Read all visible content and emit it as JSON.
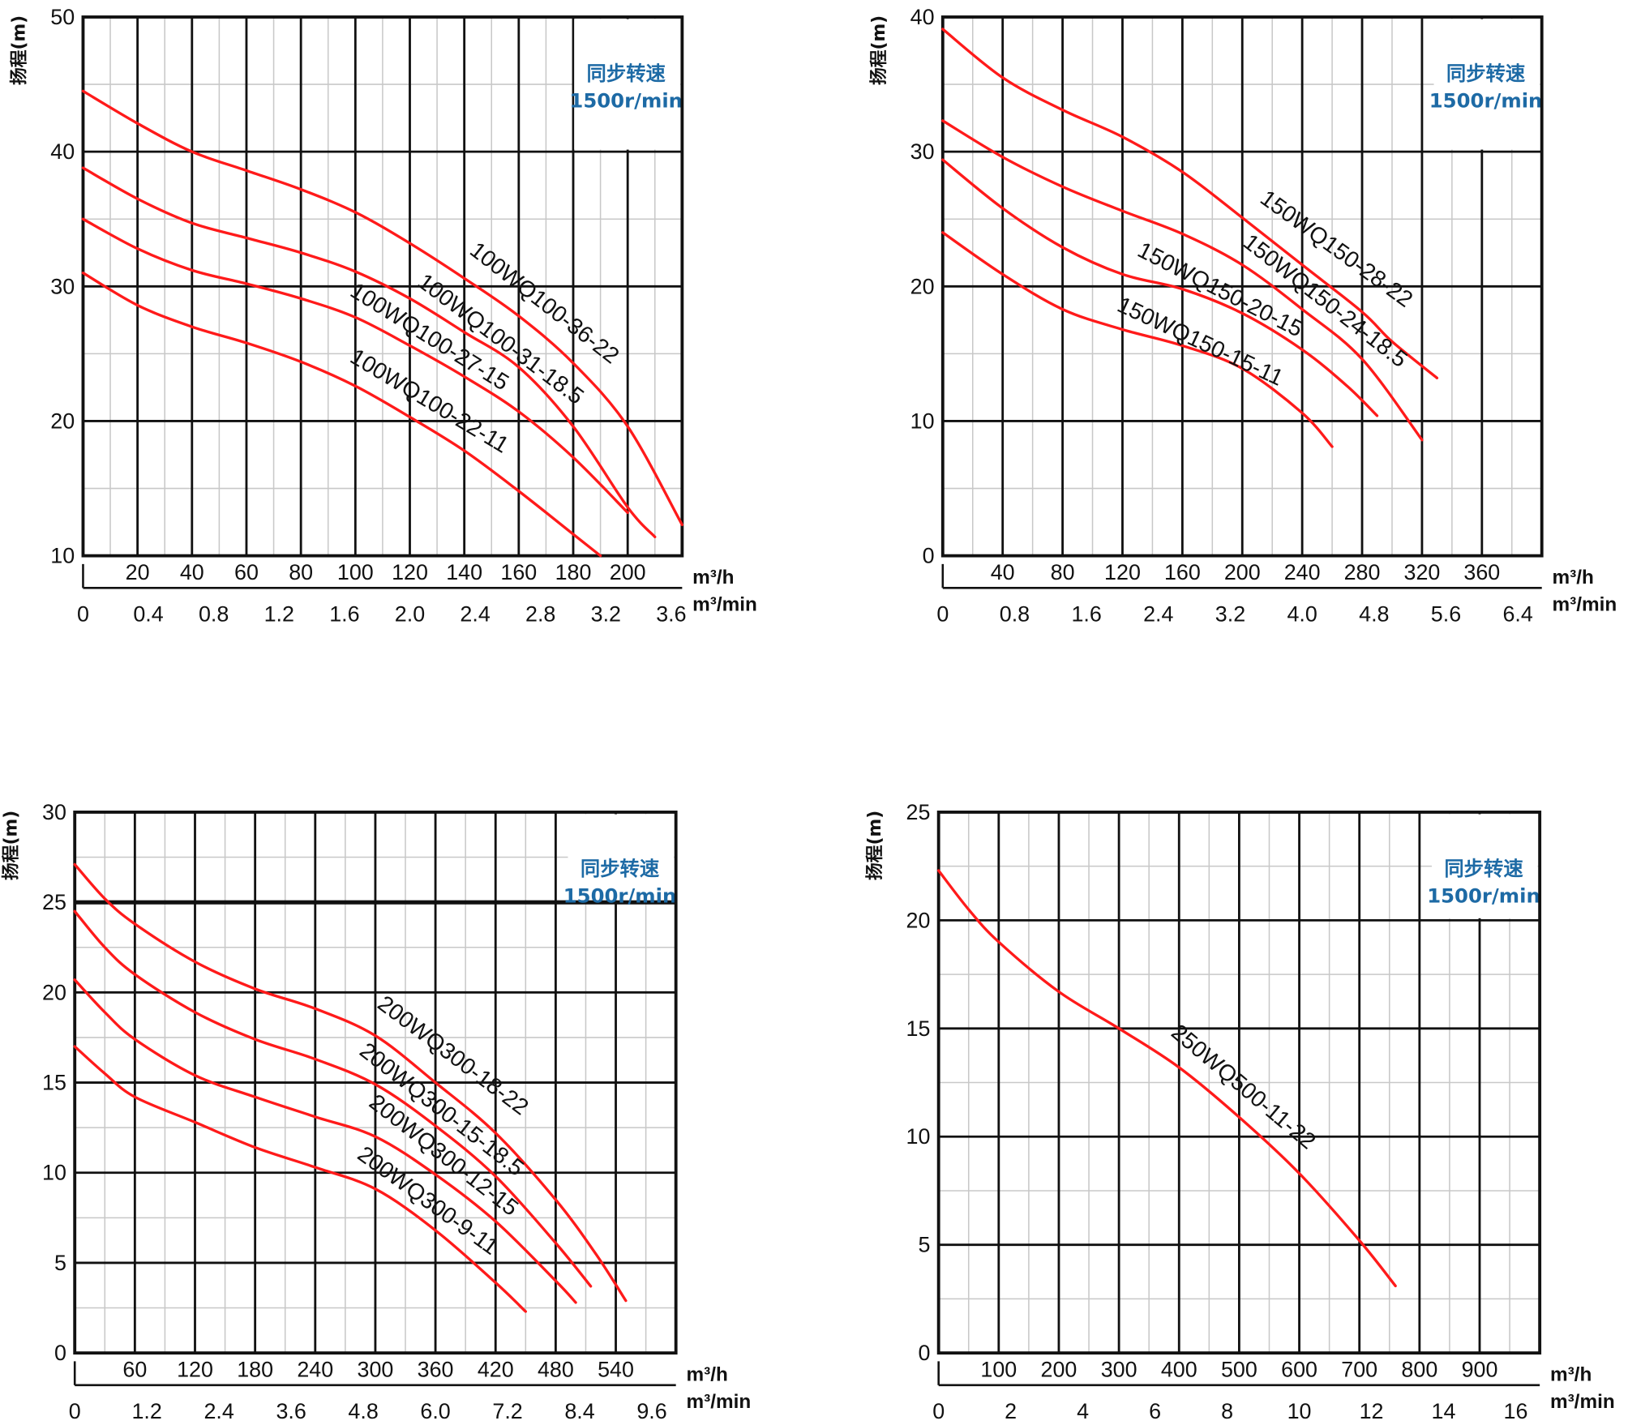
{
  "chart_data": [
    {
      "type": "line",
      "ylabel": "扬程(m)",
      "speed_title": "同步转速",
      "speed_value": "1500r/min",
      "x_unit": "m³/h",
      "x2_unit": "m³/min",
      "xlim": [
        0,
        220
      ],
      "ylim": [
        10,
        50
      ],
      "x_ticks": [
        20,
        40,
        60,
        80,
        100,
        120,
        140,
        160,
        180,
        200
      ],
      "y_ticks": [
        10,
        20,
        30,
        40,
        50
      ],
      "x2_ticks": [
        "0",
        "0.4",
        "0.8",
        "1.2",
        "1.6",
        "2.0",
        "2.4",
        "2.8",
        "3.2",
        "3.6"
      ],
      "grid": true,
      "series": [
        {
          "name": "100WQ100-36-22",
          "points": [
            [
              0,
              44.5
            ],
            [
              20,
              42.1
            ],
            [
              40,
              40
            ],
            [
              60,
              38.6
            ],
            [
              80,
              37.2
            ],
            [
              100,
              35.5
            ],
            [
              120,
              33.2
            ],
            [
              140,
              30.6
            ],
            [
              160,
              27.8
            ],
            [
              180,
              24.3
            ],
            [
              200,
              19.6
            ],
            [
              220,
              12.3
            ]
          ]
        },
        {
          "name": "100WQ100-31-18.5",
          "points": [
            [
              0,
              38.8
            ],
            [
              20,
              36.5
            ],
            [
              40,
              34.7
            ],
            [
              60,
              33.6
            ],
            [
              80,
              32.5
            ],
            [
              100,
              31.1
            ],
            [
              120,
              29.1
            ],
            [
              140,
              26.6
            ],
            [
              160,
              24
            ],
            [
              180,
              19.6
            ],
            [
              200,
              13.6
            ],
            [
              210,
              11.4
            ]
          ]
        },
        {
          "name": "100WQ100-27-15",
          "points": [
            [
              0,
              35
            ],
            [
              20,
              32.8
            ],
            [
              40,
              31.2
            ],
            [
              60,
              30.2
            ],
            [
              80,
              29.1
            ],
            [
              100,
              27.7
            ],
            [
              120,
              25.6
            ],
            [
              140,
              23.3
            ],
            [
              160,
              20.7
            ],
            [
              180,
              17.3
            ],
            [
              200,
              13.2
            ]
          ]
        },
        {
          "name": "100WQ100-22-11",
          "points": [
            [
              0,
              31
            ],
            [
              20,
              28.6
            ],
            [
              40,
              27
            ],
            [
              60,
              25.8
            ],
            [
              80,
              24.4
            ],
            [
              100,
              22.6
            ],
            [
              120,
              20.3
            ],
            [
              140,
              17.8
            ],
            [
              160,
              14.8
            ],
            [
              180,
              11.6
            ],
            [
              190,
              10
            ]
          ]
        }
      ]
    },
    {
      "type": "line",
      "ylabel": "扬程(m)",
      "speed_title": "同步转速",
      "speed_value": "1500r/min",
      "x_unit": "m³/h",
      "x2_unit": "m³/min",
      "xlim": [
        0,
        400
      ],
      "ylim": [
        0,
        40
      ],
      "x_ticks": [
        40,
        80,
        120,
        160,
        200,
        240,
        280,
        320,
        360
      ],
      "y_ticks": [
        0,
        10,
        20,
        30,
        40
      ],
      "x2_ticks": [
        "0",
        "0.8",
        "1.6",
        "2.4",
        "3.2",
        "4.0",
        "4.8",
        "5.6",
        "6.4"
      ],
      "grid": true,
      "series": [
        {
          "name": "150WQ150-28-22",
          "points": [
            [
              0,
              39.1
            ],
            [
              40,
              35.5
            ],
            [
              80,
              33.1
            ],
            [
              120,
              31.1
            ],
            [
              160,
              28.5
            ],
            [
              200,
              25.1
            ],
            [
              240,
              21.6
            ],
            [
              280,
              18.1
            ],
            [
              300,
              15.9
            ],
            [
              330,
              13.2
            ]
          ]
        },
        {
          "name": "150WQ150-24-18.5",
          "points": [
            [
              0,
              32.3
            ],
            [
              40,
              29.6
            ],
            [
              80,
              27.4
            ],
            [
              120,
              25.6
            ],
            [
              160,
              23.9
            ],
            [
              200,
              21.6
            ],
            [
              240,
              18.3
            ],
            [
              280,
              14.6
            ],
            [
              320,
              8.6
            ]
          ]
        },
        {
          "name": "150WQ150-20-15",
          "points": [
            [
              0,
              29.4
            ],
            [
              40,
              25.8
            ],
            [
              80,
              22.9
            ],
            [
              120,
              20.9
            ],
            [
              160,
              19.8
            ],
            [
              200,
              18
            ],
            [
              240,
              15.3
            ],
            [
              270,
              12.6
            ],
            [
              290,
              10.4
            ]
          ]
        },
        {
          "name": "150WQ150-15-11",
          "points": [
            [
              0,
              24
            ],
            [
              40,
              20.9
            ],
            [
              80,
              18.3
            ],
            [
              120,
              16.8
            ],
            [
              160,
              15.6
            ],
            [
              200,
              13.9
            ],
            [
              240,
              10.6
            ],
            [
              260,
              8.1
            ]
          ]
        }
      ]
    },
    {
      "type": "line",
      "ylabel": "扬程(m)",
      "speed_title": "同步转速",
      "speed_value": "1500r/min",
      "x_unit": "m³/h",
      "x2_unit": "m³/min",
      "xlim": [
        0,
        600
      ],
      "ylim": [
        0,
        30
      ],
      "x_ticks": [
        60,
        120,
        180,
        240,
        300,
        360,
        420,
        480,
        540
      ],
      "y_ticks": [
        0,
        5,
        10,
        15,
        20,
        25,
        30
      ],
      "x2_ticks": [
        "0",
        "1.2",
        "2.4",
        "3.6",
        "4.8",
        "6.0",
        "7.2",
        "8.4",
        "9.6"
      ],
      "grid": true,
      "series": [
        {
          "name": "200WQ300-18-22",
          "points": [
            [
              0,
              27.1
            ],
            [
              30,
              25.2
            ],
            [
              60,
              23.8
            ],
            [
              120,
              21.7
            ],
            [
              180,
              20.2
            ],
            [
              240,
              19.1
            ],
            [
              300,
              17.6
            ],
            [
              360,
              15
            ],
            [
              420,
              12.2
            ],
            [
              480,
              8.5
            ],
            [
              520,
              5.5
            ],
            [
              550,
              2.9
            ]
          ]
        },
        {
          "name": "200WQ300-15-18.5",
          "points": [
            [
              0,
              24.5
            ],
            [
              30,
              22.5
            ],
            [
              60,
              21
            ],
            [
              120,
              18.9
            ],
            [
              180,
              17.4
            ],
            [
              240,
              16.3
            ],
            [
              300,
              14.9
            ],
            [
              360,
              12.6
            ],
            [
              420,
              9.8
            ],
            [
              480,
              6.1
            ],
            [
              515,
              3.7
            ]
          ]
        },
        {
          "name": "200WQ300-12-15",
          "points": [
            [
              0,
              20.7
            ],
            [
              30,
              18.9
            ],
            [
              60,
              17.4
            ],
            [
              120,
              15.4
            ],
            [
              180,
              14.2
            ],
            [
              240,
              13.1
            ],
            [
              300,
              12
            ],
            [
              360,
              9.9
            ],
            [
              420,
              7.3
            ],
            [
              480,
              4
            ],
            [
              500,
              2.8
            ]
          ]
        },
        {
          "name": "200WQ300-9-11",
          "points": [
            [
              0,
              17
            ],
            [
              30,
              15.5
            ],
            [
              60,
              14.2
            ],
            [
              120,
              12.8
            ],
            [
              180,
              11.4
            ],
            [
              240,
              10.3
            ],
            [
              300,
              9.1
            ],
            [
              360,
              6.8
            ],
            [
              420,
              3.9
            ],
            [
              450,
              2.3
            ]
          ]
        }
      ]
    },
    {
      "type": "line",
      "ylabel": "扬程(m)",
      "speed_title": "同步转速",
      "speed_value": "1500r/min",
      "x_unit": "m³/h",
      "x2_unit": "m³/min",
      "xlim": [
        0,
        1000
      ],
      "ylim": [
        0,
        25
      ],
      "x_ticks": [
        100,
        200,
        300,
        400,
        500,
        600,
        700,
        800,
        900
      ],
      "y_ticks": [
        0,
        5,
        10,
        15,
        20,
        25
      ],
      "x2_ticks": [
        "0",
        "2",
        "4",
        "6",
        "8",
        "10",
        "12",
        "14",
        "16"
      ],
      "grid": true,
      "series": [
        {
          "name": "250WQ500-11-22",
          "points": [
            [
              0,
              22.3
            ],
            [
              50,
              20.5
            ],
            [
              100,
              19
            ],
            [
              200,
              16.7
            ],
            [
              300,
              15
            ],
            [
              400,
              13.2
            ],
            [
              500,
              10.9
            ],
            [
              600,
              8.3
            ],
            [
              700,
              5.2
            ],
            [
              760,
              3.1
            ]
          ]
        }
      ]
    }
  ],
  "colors": {
    "curve": "#ff1a1a",
    "speed_text": "#1d6aa5",
    "grid_major": "#111111",
    "grid_minor": "#c8c8c8"
  }
}
